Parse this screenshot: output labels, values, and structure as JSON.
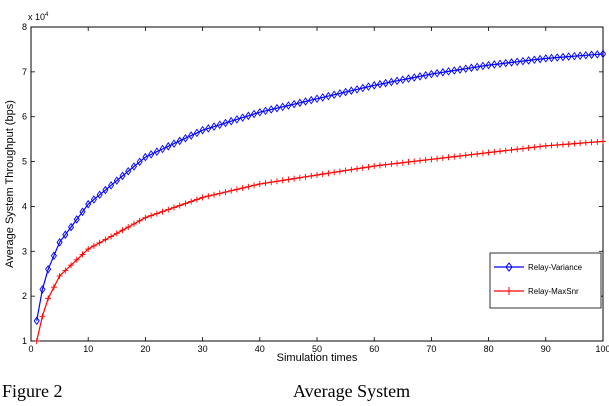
{
  "chart_data": {
    "type": "line",
    "title": "",
    "xlabel": "Simulation times",
    "ylabel": "Average System Throughput (bps)",
    "y_multiplier": "x 10",
    "y_exponent": "4",
    "xlim": [
      0,
      100
    ],
    "ylim": [
      1,
      8
    ],
    "xticks": [
      0,
      10,
      20,
      30,
      40,
      50,
      60,
      70,
      80,
      90,
      100
    ],
    "yticks": [
      1,
      2,
      3,
      4,
      5,
      6,
      7,
      8
    ],
    "xtick_labels": [
      "0",
      "10",
      "20",
      "30",
      "40",
      "50",
      "60",
      "70",
      "80",
      "90",
      "100"
    ],
    "ytick_labels": [
      "1",
      "2",
      "3",
      "4",
      "5",
      "6",
      "7",
      "8"
    ],
    "grid": false,
    "legend_position": "bottom-right",
    "x": [
      1,
      2,
      3,
      5,
      10,
      20,
      30,
      40,
      50,
      60,
      70,
      80,
      90,
      100
    ],
    "series": [
      {
        "name": "Relay-Variance",
        "color": "#0000ff",
        "marker": "diamond",
        "values": [
          1.45,
          2.15,
          2.6,
          3.2,
          4.05,
          5.1,
          5.7,
          6.1,
          6.4,
          6.7,
          6.95,
          7.15,
          7.3,
          7.4
        ]
      },
      {
        "name": "Relay-MaxSnr",
        "color": "#ff0000",
        "marker": "plus",
        "values": [
          1.0,
          1.55,
          1.95,
          2.45,
          3.05,
          3.75,
          4.2,
          4.5,
          4.7,
          4.9,
          5.05,
          5.2,
          5.35,
          5.45
        ]
      }
    ]
  },
  "caption": {
    "figure_label": "Figure 2",
    "text": "Average System"
  }
}
